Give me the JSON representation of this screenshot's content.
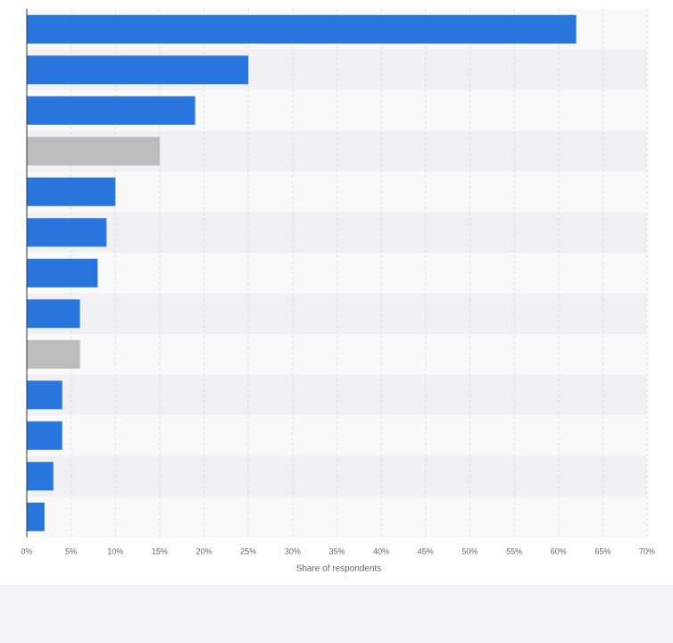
{
  "chart_data": {
    "type": "bar",
    "orientation": "horizontal",
    "categories": [
      "",
      "",
      "",
      "",
      "",
      "",
      "",
      "",
      "",
      "",
      "",
      "",
      ""
    ],
    "values": [
      62,
      25,
      19,
      15,
      10,
      9,
      8,
      6,
      6,
      4,
      4,
      3,
      2
    ],
    "bar_colors": [
      "#2876dd",
      "#2876dd",
      "#2876dd",
      "#bcbcbc",
      "#2876dd",
      "#2876dd",
      "#2876dd",
      "#2876dd",
      "#bcbcbc",
      "#2876dd",
      "#2876dd",
      "#2876dd",
      "#2876dd"
    ],
    "xlabel": "Share of respondents",
    "ylabel": "",
    "xlim": [
      0,
      70
    ],
    "x_ticks": [
      "0%",
      "5%",
      "10%",
      "15%",
      "20%",
      "25%",
      "30%",
      "35%",
      "40%",
      "45%",
      "50%",
      "55%",
      "60%",
      "65%",
      "70%"
    ],
    "grid": true,
    "colors": {
      "primary": "#2876dd",
      "secondary": "#bcbcbc",
      "band_light": "#f9f9fa",
      "band_dark": "#f1f1f3",
      "gridline": "#dcdcdc",
      "axis": "#333333"
    }
  }
}
